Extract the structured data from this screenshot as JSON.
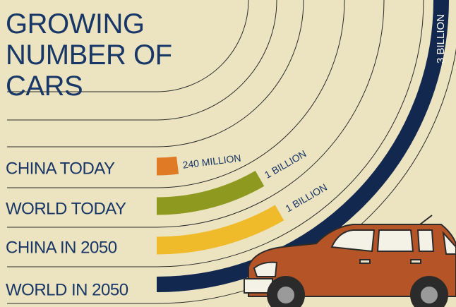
{
  "chart_data": {
    "type": "radial-bar",
    "title": "GROWING NUMBER OF CARS",
    "categories": [
      "CHINA TODAY",
      "WORLD TODAY",
      "CHINA IN 2050",
      "WORLD IN 2050"
    ],
    "values": [
      240,
      1000,
      1000,
      3000
    ],
    "value_labels": [
      "240 MILLION",
      "1 BILLION",
      "1 BILLION",
      "3 BILLION"
    ],
    "colors": [
      "#e07a25",
      "#8d991f",
      "#efbb2b",
      "#12284f"
    ]
  }
}
